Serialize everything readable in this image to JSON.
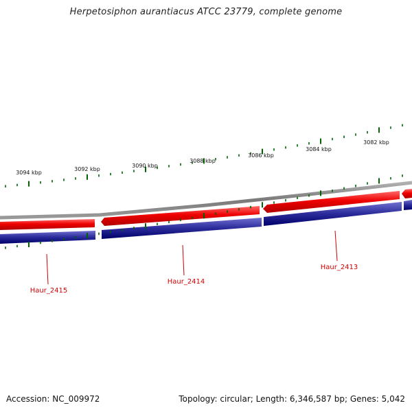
{
  "title": "Herpetosiphon aurantiacus ATCC 23779, complete genome",
  "footer": {
    "accession": "Accession: NC_009972",
    "summary": "Topology: circular; Length: 6,346,587 bp; Genes: 5,042"
  },
  "colors": {
    "forward_gene": "#e00000",
    "reverse_cds": "#000080",
    "backbone": "#808080",
    "tick": "#006400",
    "gene_label": "#cc0000"
  },
  "ruler": {
    "unit": "kbp",
    "labels": [
      "3094 kbp",
      "3092 kbp",
      "3090 kbp",
      "3088 kbp",
      "3086 kbp",
      "3084 kbp",
      "3082 kbp"
    ]
  },
  "genes": [
    {
      "name": "Haur_2415",
      "strand": "reverse"
    },
    {
      "name": "Haur_2414",
      "strand": "reverse"
    },
    {
      "name": "Haur_2413",
      "strand": "reverse"
    }
  ]
}
